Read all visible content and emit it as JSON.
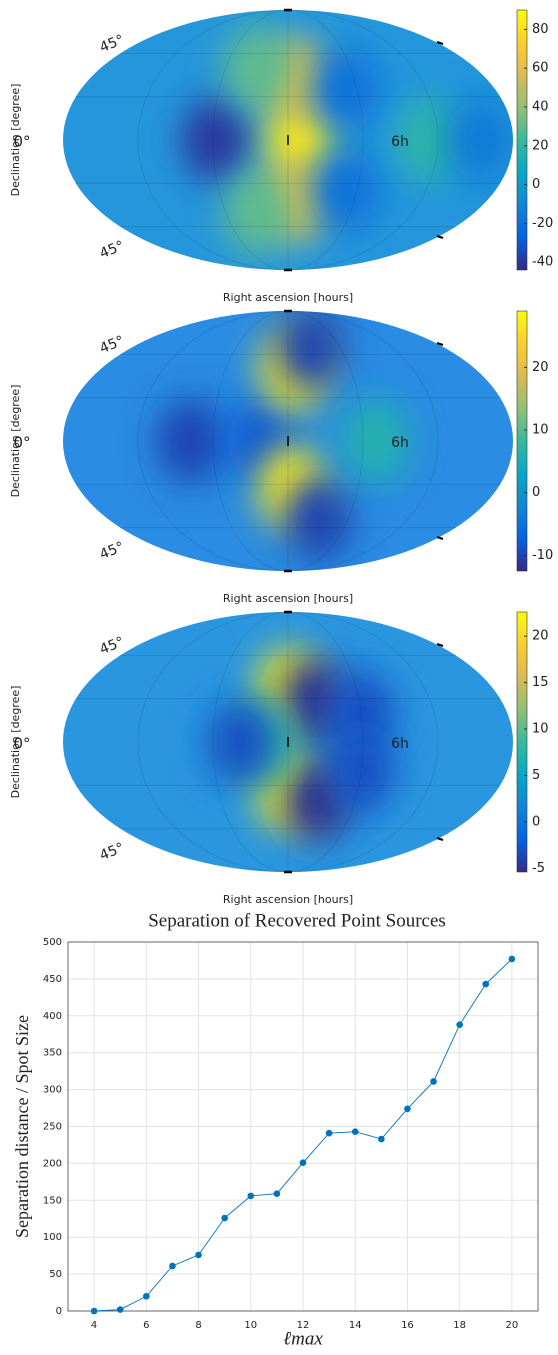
{
  "chart_data": [
    {
      "type": "skymap",
      "xlabel": "Right ascension [hours]",
      "ylabel": "Declination [degree]",
      "annotations": [
        "45°",
        "0°",
        "6h",
        "45°"
      ],
      "clim": [
        -44,
        90
      ],
      "cticks": [
        -40,
        -20,
        0,
        20,
        40,
        60,
        80
      ],
      "spots": [
        {
          "lon": -58,
          "lat": 0,
          "value": -40
        },
        {
          "lon": 10,
          "lat": 0,
          "value": 85
        },
        {
          "lon": 8,
          "lat": 40,
          "value": 65
        },
        {
          "lon": 8,
          "lat": -40,
          "value": 65
        },
        {
          "lon": -30,
          "lat": 50,
          "value": 30
        },
        {
          "lon": -30,
          "lat": -50,
          "value": 30
        },
        {
          "lon": 50,
          "lat": 35,
          "value": -20
        },
        {
          "lon": 50,
          "lat": -35,
          "value": -20
        },
        {
          "lon": 114,
          "lat": 0,
          "value": 20
        },
        {
          "lon": 154,
          "lat": 0,
          "value": -15
        }
      ]
    },
    {
      "type": "skymap",
      "xlabel": "Right ascension [hours]",
      "ylabel": "Declination [degree]",
      "annotations": [
        "45°",
        "0°",
        "6h",
        "45°"
      ],
      "clim": [
        -12.5,
        29
      ],
      "cticks": [
        -10,
        0,
        10,
        20
      ],
      "spots": [
        {
          "lon": -78,
          "lat": 0,
          "value": -10
        },
        {
          "lon": -21,
          "lat": 0,
          "value": -8
        },
        {
          "lon": 6,
          "lat": 50,
          "value": 27
        },
        {
          "lon": 4,
          "lat": -33,
          "value": 27
        },
        {
          "lon": 26,
          "lat": 64,
          "value": -10
        },
        {
          "lon": 30,
          "lat": -54,
          "value": -10
        },
        {
          "lon": 70,
          "lat": 0,
          "value": 6
        }
      ]
    },
    {
      "type": "skymap",
      "xlabel": "Right ascension [hours]",
      "ylabel": "Declination [degree]",
      "annotations": [
        "45°",
        "0°",
        "6h",
        "45°"
      ],
      "clim": [
        -5.4,
        22.6
      ],
      "cticks": [
        -5,
        0,
        5,
        10,
        15,
        20
      ],
      "spots": [
        {
          "lon": 2,
          "lat": 36,
          "value": 22
        },
        {
          "lon": 2,
          "lat": -33,
          "value": 22
        },
        {
          "lon": 22,
          "lat": 29,
          "value": -5
        },
        {
          "lon": 26,
          "lat": -40,
          "value": -5
        },
        {
          "lon": -21,
          "lat": 0,
          "value": 8
        },
        {
          "lon": -38,
          "lat": 0,
          "value": -3
        },
        {
          "lon": 60,
          "lat": 20,
          "value": -3
        },
        {
          "lon": 60,
          "lat": -20,
          "value": -3
        }
      ]
    },
    {
      "type": "line",
      "title": "Separation of Recovered Point Sources",
      "xlabel": "ℓmax",
      "ylabel": "Separation distance / Spot Size",
      "x": [
        4,
        5,
        6,
        7,
        8,
        9,
        10,
        11,
        12,
        13,
        14,
        15,
        16,
        17,
        18,
        19,
        20
      ],
      "series": [
        {
          "color": "#0072bd",
          "values": [
            0,
            2,
            20,
            61,
            76,
            126,
            156,
            159,
            201,
            241,
            243,
            233,
            274,
            311,
            388,
            443,
            477
          ]
        }
      ],
      "xlim": [
        3,
        21
      ],
      "xticks": [
        4,
        6,
        8,
        10,
        12,
        14,
        16,
        18,
        20
      ],
      "ylim": [
        0,
        500
      ],
      "yticks": [
        0,
        50,
        100,
        150,
        200,
        250,
        300,
        350,
        400,
        450,
        500
      ],
      "grid": true
    }
  ]
}
